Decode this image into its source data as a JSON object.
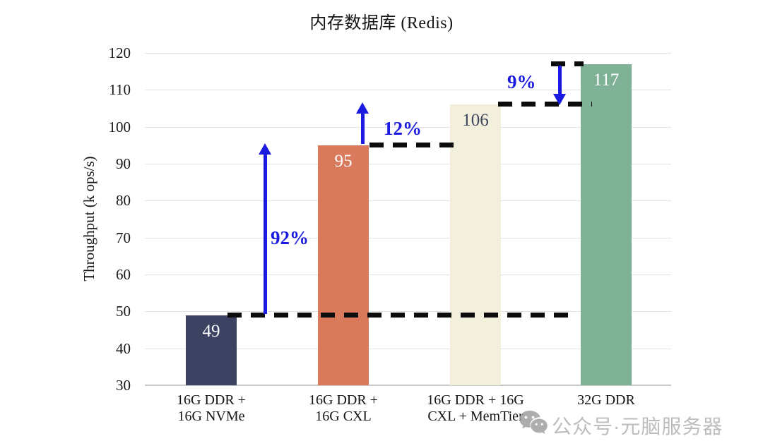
{
  "title": "内存数据库 (Redis)",
  "watermark": {
    "icon": "wechat-icon",
    "text": "公众号·元脑服务器"
  },
  "chart_data": {
    "type": "bar",
    "title": "内存数据库 (Redis)",
    "xlabel": "",
    "ylabel": "Throughput (k ops/s)",
    "ylim": [
      30,
      120
    ],
    "yticks": [
      120,
      110,
      100,
      90,
      80,
      70,
      60,
      50,
      40,
      30
    ],
    "grid": true,
    "legend": "none",
    "categories": [
      "16G DDR +\n16G NVMe",
      "16G DDR +\n16G CXL",
      "16G DDR + 16G\nCXL + MemTier",
      "32G DDR"
    ],
    "values": [
      49,
      95,
      106,
      117
    ],
    "bar_colors": [
      "#3c4262",
      "#d97a5d",
      "#f2efdc",
      "#7fb197"
    ],
    "value_label_colors": [
      "#ffffff",
      "#ffffff",
      "#3f455c",
      "#ffffff"
    ],
    "annotation_color": "#1a1ae0",
    "annotations": [
      {
        "label": "92%",
        "from": 49,
        "to": 95,
        "direction": "up"
      },
      {
        "label": "12%",
        "from": 95,
        "to": 106,
        "direction": "up"
      },
      {
        "label": "9%",
        "from": 117,
        "to": 106,
        "direction": "down"
      }
    ],
    "reference_levels": [
      49,
      95,
      106,
      117
    ]
  }
}
